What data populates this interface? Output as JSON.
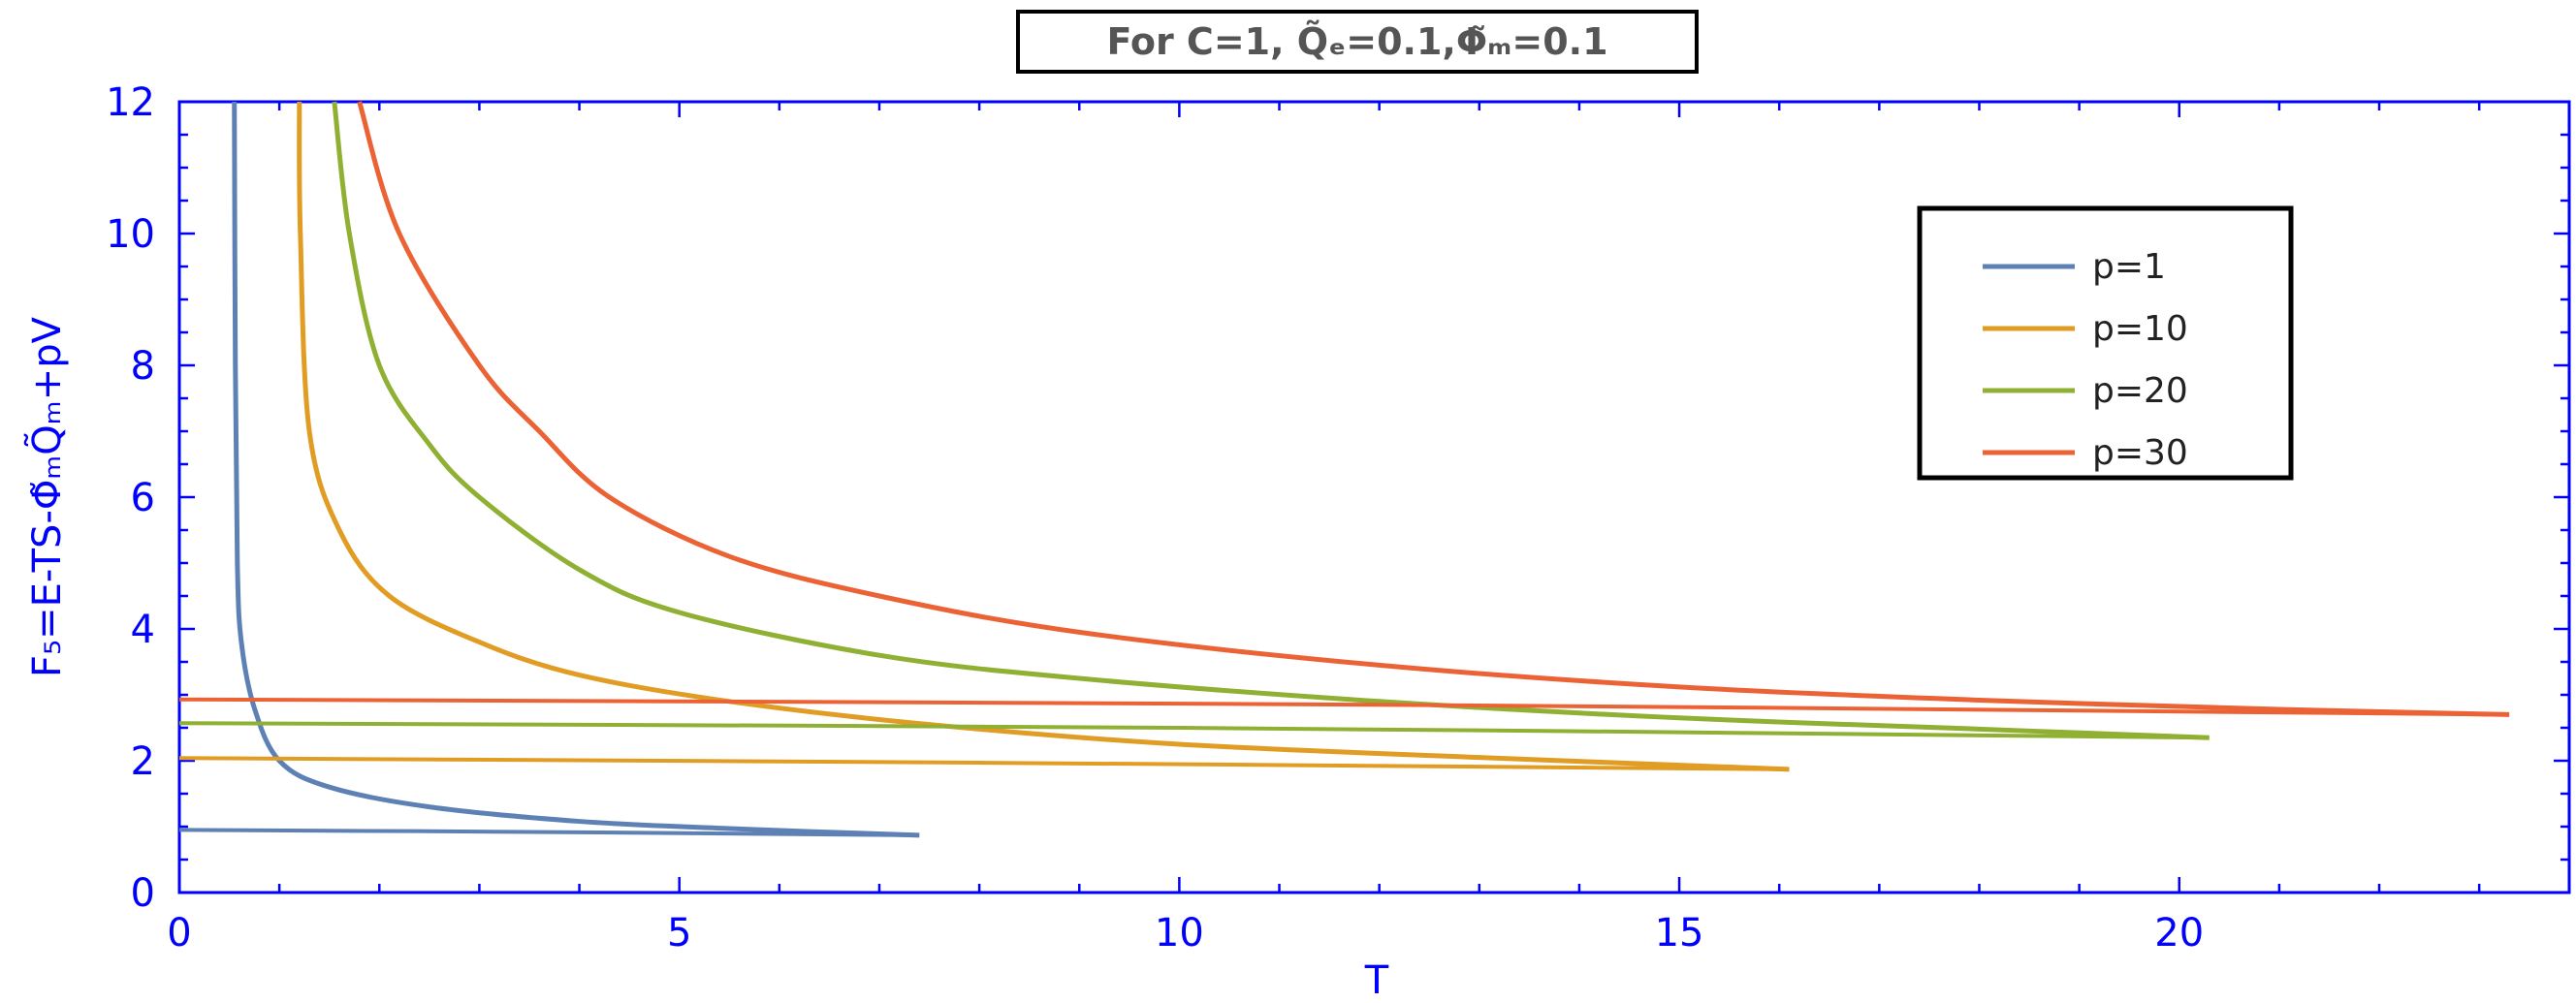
{
  "chart_data": {
    "type": "line",
    "title": "For C=1, Q̃ₑ=0.1,Φ̃ₘ=0.1",
    "xlabel": "T",
    "ylabel": "F₅=E-TS-Φ̃ₘQ̃ₘ+pV",
    "xlim": [
      0,
      23.9
    ],
    "ylim": [
      0,
      12
    ],
    "x_ticks": [
      0,
      5,
      10,
      15,
      20
    ],
    "y_ticks": [
      0,
      2,
      4,
      6,
      8,
      10,
      12
    ],
    "grid": false,
    "legend_position": "top-right",
    "axis_color": "#0000ff",
    "series": [
      {
        "name": "p=1",
        "color": "#5e81b5",
        "upper": [
          [
            0.55,
            12
          ],
          [
            0.56,
            8
          ],
          [
            0.58,
            5
          ],
          [
            0.62,
            3.8
          ],
          [
            0.75,
            2.8
          ],
          [
            1.0,
            2.0
          ],
          [
            1.5,
            1.6
          ],
          [
            2.5,
            1.3
          ],
          [
            4,
            1.08
          ],
          [
            5.5,
            0.97
          ],
          [
            7.4,
            0.87
          ]
        ],
        "lower": [
          [
            0,
            0.95
          ],
          [
            3.5,
            0.92
          ],
          [
            7.4,
            0.87
          ]
        ]
      },
      {
        "name": "p=10",
        "color": "#e19c24",
        "upper": [
          [
            1.2,
            12
          ],
          [
            1.21,
            10
          ],
          [
            1.3,
            7
          ],
          [
            1.6,
            5.5
          ],
          [
            2.1,
            4.5
          ],
          [
            3,
            3.8
          ],
          [
            4,
            3.3
          ],
          [
            5.5,
            2.9
          ],
          [
            7.5,
            2.55
          ],
          [
            10,
            2.25
          ],
          [
            13,
            2.05
          ],
          [
            16.1,
            1.87
          ]
        ],
        "lower": [
          [
            0,
            2.04
          ],
          [
            8,
            1.97
          ],
          [
            16.1,
            1.87
          ]
        ]
      },
      {
        "name": "p=20",
        "color": "#8fb032",
        "upper": [
          [
            1.55,
            12
          ],
          [
            1.7,
            10
          ],
          [
            2.0,
            8
          ],
          [
            2.5,
            6.8
          ],
          [
            3,
            6
          ],
          [
            4,
            4.9
          ],
          [
            5,
            4.25
          ],
          [
            7,
            3.6
          ],
          [
            9,
            3.25
          ],
          [
            12,
            2.9
          ],
          [
            15,
            2.65
          ],
          [
            18,
            2.48
          ],
          [
            20.3,
            2.35
          ]
        ],
        "lower": [
          [
            0,
            2.57
          ],
          [
            10,
            2.5
          ],
          [
            20.3,
            2.35
          ]
        ]
      },
      {
        "name": "p=30",
        "color": "#eb6235",
        "upper": [
          [
            1.8,
            12
          ],
          [
            2.2,
            10
          ],
          [
            3,
            8
          ],
          [
            3.6,
            7
          ],
          [
            4.3,
            6
          ],
          [
            5.5,
            5.1
          ],
          [
            7,
            4.5
          ],
          [
            9,
            3.95
          ],
          [
            12,
            3.45
          ],
          [
            15,
            3.12
          ],
          [
            18,
            2.92
          ],
          [
            21,
            2.78
          ],
          [
            23.3,
            2.7
          ]
        ],
        "lower": [
          [
            0,
            2.93
          ],
          [
            12,
            2.85
          ],
          [
            23.3,
            2.7
          ]
        ]
      }
    ]
  }
}
